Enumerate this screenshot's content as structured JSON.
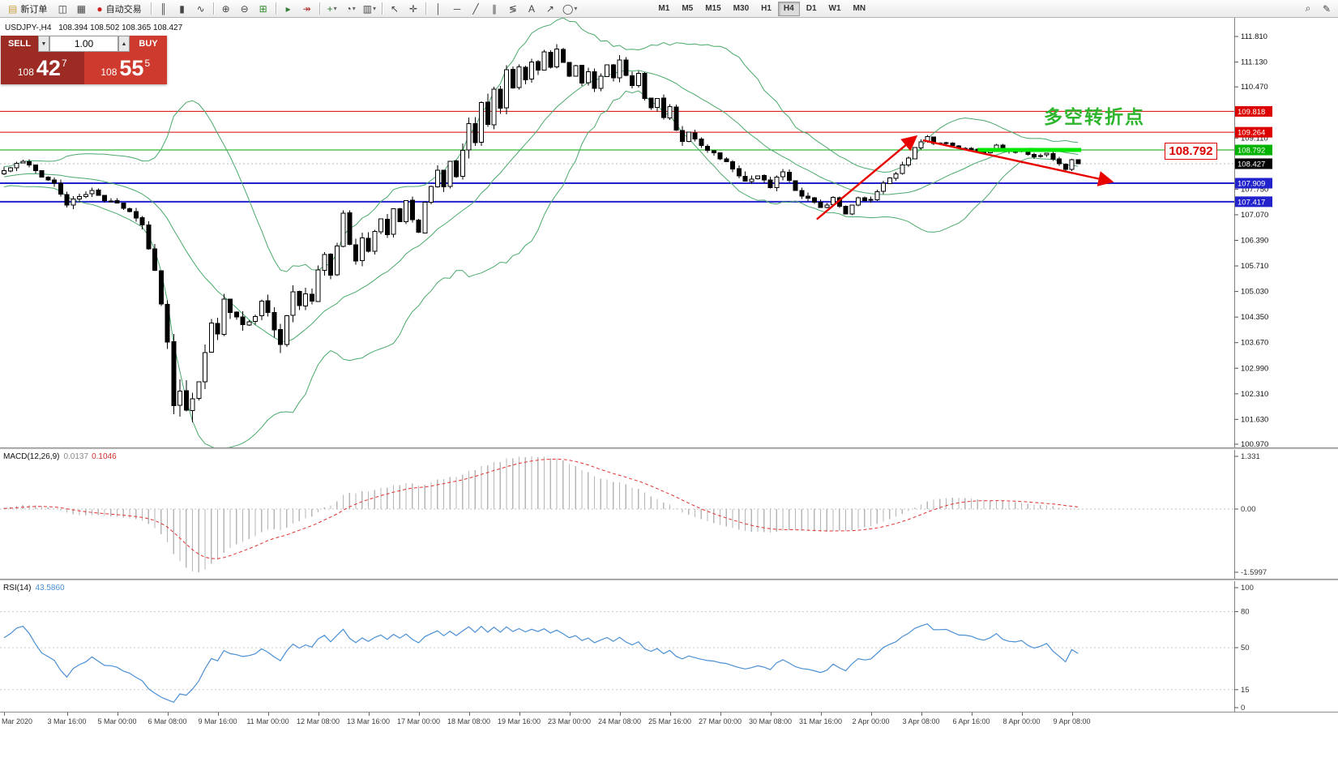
{
  "toolbar": {
    "timeframes": [
      "M1",
      "M5",
      "M15",
      "M30",
      "H1",
      "H4",
      "D1",
      "W1",
      "MN"
    ],
    "active_timeframe": "H4",
    "items": [
      {
        "type": "button",
        "name": "new-order-button",
        "label": "新订单",
        "icon": {
          "name": "new-order-icon",
          "glyph": "▤",
          "color": "#c89f3c"
        }
      },
      {
        "type": "icon",
        "name": "chart-window-icon",
        "glyph": "◫"
      },
      {
        "type": "icon",
        "name": "market-watch-icon",
        "glyph": "▦"
      },
      {
        "type": "button",
        "name": "autotrading-button",
        "label": "自动交易",
        "icon": {
          "name": "autotrading-icon",
          "glyph": "●",
          "color": "#cc2222"
        }
      },
      {
        "type": "sep"
      },
      {
        "type": "icon",
        "name": "bar-chart-icon",
        "glyph": "║"
      },
      {
        "type": "icon",
        "name": "candlestick-chart-icon",
        "glyph": "▮"
      },
      {
        "type": "icon",
        "name": "line-chart-icon",
        "glyph": "∿"
      },
      {
        "type": "sep"
      },
      {
        "type": "icon",
        "name": "zoom-in-icon",
        "glyph": "⊕"
      },
      {
        "type": "icon",
        "name": "zoom-out-icon",
        "glyph": "⊖"
      },
      {
        "type": "icon",
        "name": "tile-windows-icon",
        "glyph": "⊞",
        "color": "#2e8b2e"
      },
      {
        "type": "sep"
      },
      {
        "type": "icon",
        "name": "auto-scroll-icon",
        "glyph": "▸",
        "color": "#2e7d32"
      },
      {
        "type": "icon",
        "name": "chart-shift-icon",
        "glyph": "↠",
        "color": "#b03030"
      },
      {
        "type": "sep"
      },
      {
        "type": "icon",
        "name": "indicators-icon",
        "glyph": "+",
        "color": "#2e7d32",
        "dropdown": true
      },
      {
        "type": "icon",
        "name": "periods-icon",
        "glyph": "◔",
        "dropdown": true
      },
      {
        "type": "icon",
        "name": "templates-icon",
        "glyph": "▥",
        "dropdown": true
      },
      {
        "type": "sep"
      },
      {
        "type": "icon",
        "name": "cursor-icon",
        "glyph": "↖"
      },
      {
        "type": "icon",
        "name": "crosshair-icon",
        "glyph": "✛"
      },
      {
        "type": "sep"
      },
      {
        "type": "icon",
        "name": "vertical-line-icon",
        "glyph": "│"
      },
      {
        "type": "icon",
        "name": "horizontal-line-icon",
        "glyph": "─"
      },
      {
        "type": "icon",
        "name": "trendline-icon",
        "glyph": "╱"
      },
      {
        "type": "icon",
        "name": "channel-icon",
        "glyph": "∥"
      },
      {
        "type": "icon",
        "name": "fibonacci-icon",
        "glyph": "≶"
      },
      {
        "type": "icon",
        "name": "text-icon",
        "glyph": "A"
      },
      {
        "type": "icon",
        "name": "arrow-icon",
        "glyph": "↗"
      },
      {
        "type": "icon",
        "name": "shapes-icon",
        "glyph": "◯",
        "dropdown": true
      },
      {
        "type": "spacer",
        "width": 88
      },
      {
        "type": "timeframes"
      },
      {
        "type": "flex"
      },
      {
        "type": "icon",
        "name": "search-icon",
        "glyph": "⌕"
      },
      {
        "type": "icon",
        "name": "feedback-icon",
        "glyph": "✎"
      }
    ]
  },
  "symbol": {
    "title": "USDJPY-,H4",
    "ohlc": "108.394 108.502 108.365 108.427"
  },
  "trade_panel": {
    "sell_label": "SELL",
    "buy_label": "BUY",
    "volume": "1.00",
    "spinner": {
      "up": "▲",
      "down": "▼"
    },
    "sell_price": {
      "prefix": "108",
      "main": "42",
      "sup": "7"
    },
    "buy_price": {
      "prefix": "108",
      "main": "55",
      "sup": "5"
    }
  },
  "chart_data": {
    "type": "candlestick",
    "symbol": "USDJPY-",
    "timeframe": "H4",
    "ohlc_display": {
      "open": "108.394",
      "high": "108.502",
      "low": "108.365",
      "close": "108.427"
    },
    "bars_total": 172,
    "seed": 7,
    "last_close": 108.427,
    "price_axis": {
      "max": 111.81,
      "min": 100.97,
      "ticks": [
        "111.810",
        "111.130",
        "110.470",
        "109.110",
        "107.750",
        "107.070",
        "106.390",
        "105.710",
        "105.030",
        "104.350",
        "103.670",
        "102.990",
        "102.310",
        "101.630",
        "100.970"
      ],
      "line_labels": [
        {
          "text": "109.818",
          "value": 109.818,
          "bg": "#dd0000",
          "fg": "#ffffff"
        },
        {
          "text": "109.264",
          "value": 109.264,
          "bg": "#dd0000",
          "fg": "#ffffff"
        },
        {
          "text": "108.792",
          "value": 108.792,
          "bg": "#00b300",
          "fg": "#ffffff"
        },
        {
          "text": "108.427",
          "value": 108.427,
          "bg": "#000000",
          "fg": "#ffffff"
        },
        {
          "text": "107.909",
          "value": 107.909,
          "bg": "#2222cc",
          "fg": "#ffffff"
        },
        {
          "text": "107.417",
          "value": 107.417,
          "bg": "#2222cc",
          "fg": "#ffffff"
        }
      ]
    },
    "h_lines": [
      {
        "value": 109.818,
        "color": "#dd0000",
        "width": 1
      },
      {
        "value": 109.264,
        "color": "#dd0000",
        "width": 1
      },
      {
        "value": 108.792,
        "color": "#00aa00",
        "width": 1
      },
      {
        "value": 108.427,
        "color": "#bbbbbb",
        "width": 1,
        "dash": "2,3"
      },
      {
        "value": 107.909,
        "color": "#2222cc",
        "width": 2
      },
      {
        "value": 107.417,
        "color": "#2222cc",
        "width": 2
      }
    ],
    "x_labels": [
      {
        "bar": 0,
        "text": "Mar 2020",
        "align": "left"
      },
      {
        "bar": 10,
        "text": "3 Mar 16:00"
      },
      {
        "bar": 18,
        "text": "5 Mar 00:00"
      },
      {
        "bar": 26,
        "text": "6 Mar 08:00"
      },
      {
        "bar": 34,
        "text": "9 Mar 16:00"
      },
      {
        "bar": 42,
        "text": "11 Mar 00:00"
      },
      {
        "bar": 50,
        "text": "12 Mar 08:00"
      },
      {
        "bar": 58,
        "text": "13 Mar 16:00"
      },
      {
        "bar": 66,
        "text": "17 Mar 00:00"
      },
      {
        "bar": 74,
        "text": "18 Mar 08:00"
      },
      {
        "bar": 82,
        "text": "19 Mar 16:00"
      },
      {
        "bar": 90,
        "text": "23 Mar 00:00"
      },
      {
        "bar": 98,
        "text": "24 Mar 08:00"
      },
      {
        "bar": 106,
        "text": "25 Mar 16:00"
      },
      {
        "bar": 114,
        "text": "27 Mar 00:00"
      },
      {
        "bar": 122,
        "text": "30 Mar 08:00"
      },
      {
        "bar": 130,
        "text": "31 Mar 16:00"
      },
      {
        "bar": 138,
        "text": "2 Apr 00:00"
      },
      {
        "bar": 146,
        "text": "3 Apr 08:00"
      },
      {
        "bar": 154,
        "text": "6 Apr 16:00"
      },
      {
        "bar": 162,
        "text": "8 Apr 00:00"
      },
      {
        "bar": 170,
        "text": "9 Apr 08:00"
      }
    ],
    "anchors": [
      [
        0,
        108.25,
        0.18
      ],
      [
        3,
        108.5,
        0.15
      ],
      [
        6,
        108.1,
        0.18
      ],
      [
        8,
        107.9,
        0.2
      ],
      [
        10,
        107.35,
        0.22
      ],
      [
        12,
        107.55,
        0.18
      ],
      [
        14,
        107.7,
        0.15
      ],
      [
        16,
        107.45,
        0.15
      ],
      [
        18,
        107.4,
        0.15
      ],
      [
        20,
        107.15,
        0.18
      ],
      [
        22,
        106.8,
        0.25
      ],
      [
        24,
        105.6,
        0.45
      ],
      [
        25,
        104.8,
        0.5
      ],
      [
        26,
        103.6,
        0.6
      ],
      [
        27,
        102.1,
        0.7
      ],
      [
        28,
        102.5,
        0.6
      ],
      [
        29,
        101.75,
        0.7
      ],
      [
        30,
        102.15,
        0.6
      ],
      [
        31,
        102.6,
        0.45
      ],
      [
        32,
        103.3,
        0.5
      ],
      [
        33,
        104.25,
        0.45
      ],
      [
        34,
        103.9,
        0.4
      ],
      [
        35,
        104.85,
        0.4
      ],
      [
        36,
        104.45,
        0.35
      ],
      [
        38,
        104.2,
        0.35
      ],
      [
        40,
        104.35,
        0.3
      ],
      [
        41,
        104.85,
        0.3
      ],
      [
        42,
        104.5,
        0.3
      ],
      [
        43,
        103.95,
        0.45
      ],
      [
        44,
        103.55,
        0.5
      ],
      [
        45,
        104.4,
        0.4
      ],
      [
        46,
        105.05,
        0.35
      ],
      [
        47,
        104.65,
        0.3
      ],
      [
        48,
        105.0,
        0.3
      ],
      [
        49,
        104.8,
        0.3
      ],
      [
        50,
        105.55,
        0.3
      ],
      [
        51,
        106.05,
        0.35
      ],
      [
        52,
        105.45,
        0.35
      ],
      [
        53,
        106.3,
        0.3
      ],
      [
        54,
        107.05,
        0.35
      ],
      [
        55,
        106.25,
        0.4
      ],
      [
        56,
        105.85,
        0.35
      ],
      [
        57,
        106.5,
        0.3
      ],
      [
        58,
        106.05,
        0.3
      ],
      [
        59,
        106.65,
        0.25
      ],
      [
        60,
        107.0,
        0.25
      ],
      [
        61,
        106.55,
        0.25
      ],
      [
        62,
        107.2,
        0.25
      ],
      [
        63,
        106.9,
        0.2
      ],
      [
        64,
        107.5,
        0.2
      ],
      [
        65,
        106.95,
        0.25
      ],
      [
        66,
        106.65,
        0.25
      ],
      [
        67,
        107.35,
        0.2
      ],
      [
        68,
        107.85,
        0.2
      ],
      [
        69,
        108.25,
        0.25
      ],
      [
        70,
        107.8,
        0.25
      ],
      [
        71,
        108.45,
        0.2
      ],
      [
        72,
        108.05,
        0.3
      ],
      [
        73,
        108.7,
        0.35
      ],
      [
        74,
        109.55,
        0.5
      ],
      [
        75,
        109.05,
        0.45
      ],
      [
        76,
        110.05,
        0.5
      ],
      [
        77,
        109.5,
        0.45
      ],
      [
        78,
        110.35,
        0.4
      ],
      [
        79,
        109.9,
        0.4
      ],
      [
        80,
        110.85,
        0.35
      ],
      [
        81,
        110.4,
        0.3
      ],
      [
        82,
        111.0,
        0.3
      ],
      [
        83,
        110.6,
        0.3
      ],
      [
        84,
        111.15,
        0.25
      ],
      [
        85,
        110.9,
        0.25
      ],
      [
        86,
        111.35,
        0.25
      ],
      [
        87,
        111.0,
        0.2
      ],
      [
        88,
        111.5,
        0.25
      ],
      [
        89,
        111.1,
        0.2
      ],
      [
        90,
        110.7,
        0.25
      ],
      [
        91,
        111.0,
        0.2
      ],
      [
        92,
        110.6,
        0.2
      ],
      [
        93,
        110.9,
        0.2
      ],
      [
        94,
        110.45,
        0.25
      ],
      [
        95,
        110.8,
        0.2
      ],
      [
        96,
        111.1,
        0.25
      ],
      [
        97,
        110.7,
        0.2
      ],
      [
        98,
        111.15,
        0.25
      ],
      [
        99,
        110.8,
        0.2
      ],
      [
        100,
        110.5,
        0.2
      ],
      [
        101,
        110.85,
        0.2
      ],
      [
        102,
        110.2,
        0.25
      ],
      [
        103,
        109.9,
        0.25
      ],
      [
        104,
        110.15,
        0.2
      ],
      [
        105,
        109.6,
        0.25
      ],
      [
        106,
        109.9,
        0.2
      ],
      [
        107,
        109.35,
        0.25
      ],
      [
        108,
        109.0,
        0.25
      ],
      [
        109,
        109.3,
        0.2
      ],
      [
        110,
        109.05,
        0.2
      ],
      [
        112,
        108.8,
        0.2
      ],
      [
        114,
        108.6,
        0.2
      ],
      [
        116,
        108.3,
        0.2
      ],
      [
        118,
        107.95,
        0.25
      ],
      [
        120,
        108.1,
        0.2
      ],
      [
        122,
        107.8,
        0.2
      ],
      [
        124,
        108.25,
        0.2
      ],
      [
        126,
        107.7,
        0.2
      ],
      [
        128,
        107.5,
        0.2
      ],
      [
        130,
        107.25,
        0.2
      ],
      [
        132,
        107.5,
        0.18
      ],
      [
        134,
        107.1,
        0.2
      ],
      [
        136,
        107.5,
        0.15
      ],
      [
        138,
        107.45,
        0.15
      ],
      [
        140,
        107.95,
        0.18
      ],
      [
        142,
        108.2,
        0.18
      ],
      [
        144,
        108.55,
        0.18
      ],
      [
        145,
        108.85,
        0.15
      ],
      [
        146,
        109.05,
        0.15
      ],
      [
        147,
        109.15,
        0.12
      ],
      [
        148,
        108.95,
        0.12
      ],
      [
        150,
        109.0,
        0.1
      ],
      [
        152,
        108.85,
        0.1
      ],
      [
        154,
        108.8,
        0.1
      ],
      [
        156,
        108.7,
        0.1
      ],
      [
        158,
        108.9,
        0.1
      ],
      [
        160,
        108.72,
        0.1
      ],
      [
        162,
        108.78,
        0.1
      ],
      [
        164,
        108.6,
        0.1
      ],
      [
        166,
        108.7,
        0.1
      ],
      [
        168,
        108.45,
        0.12
      ],
      [
        169,
        108.3,
        0.1
      ],
      [
        170,
        108.55,
        0.1
      ],
      [
        171,
        108.43,
        0.08
      ]
    ],
    "bollinger": {
      "period": 20,
      "deviation": 2,
      "color": "#4aa96c"
    },
    "macd": {
      "label": "MACD(12,26,9)",
      "value_main": "0.0137",
      "value_signal": "0.1046",
      "axis_ticks": [
        "1.331",
        "0.00",
        "-1.5997"
      ],
      "axis_values": [
        1.331,
        0,
        -1.5997
      ],
      "hist_color": "#b6b6b6",
      "signal_color": "#e03030"
    },
    "rsi": {
      "label": "RSI(14)",
      "value": "43.5860",
      "axis_ticks": [
        "100",
        "80",
        "50",
        "15",
        "0"
      ],
      "axis_values": [
        100,
        80,
        50,
        15,
        0
      ],
      "levels": [
        80,
        50,
        15
      ],
      "color": "#4a8fd4"
    },
    "annotations": {
      "turning_point_text": {
        "text": "多空转折点",
        "color": "#2db52d"
      },
      "price_callout": {
        "text": "108.792",
        "color": "#dd0000"
      },
      "thick_segment": {
        "from_bar": 155,
        "to_bar": 171.5,
        "value": 108.792,
        "color": "#00e800",
        "width": 5
      },
      "arrow_up": {
        "from_bar": 129.4,
        "from_value": 106.95,
        "to_bar": 145.2,
        "to_value": 109.15,
        "color": "#e80000"
      },
      "arrow_down": {
        "from_bar": 146.3,
        "from_value": 109.05,
        "to_bar": 176.4,
        "to_value": 107.95,
        "color": "#e80000"
      }
    }
  }
}
